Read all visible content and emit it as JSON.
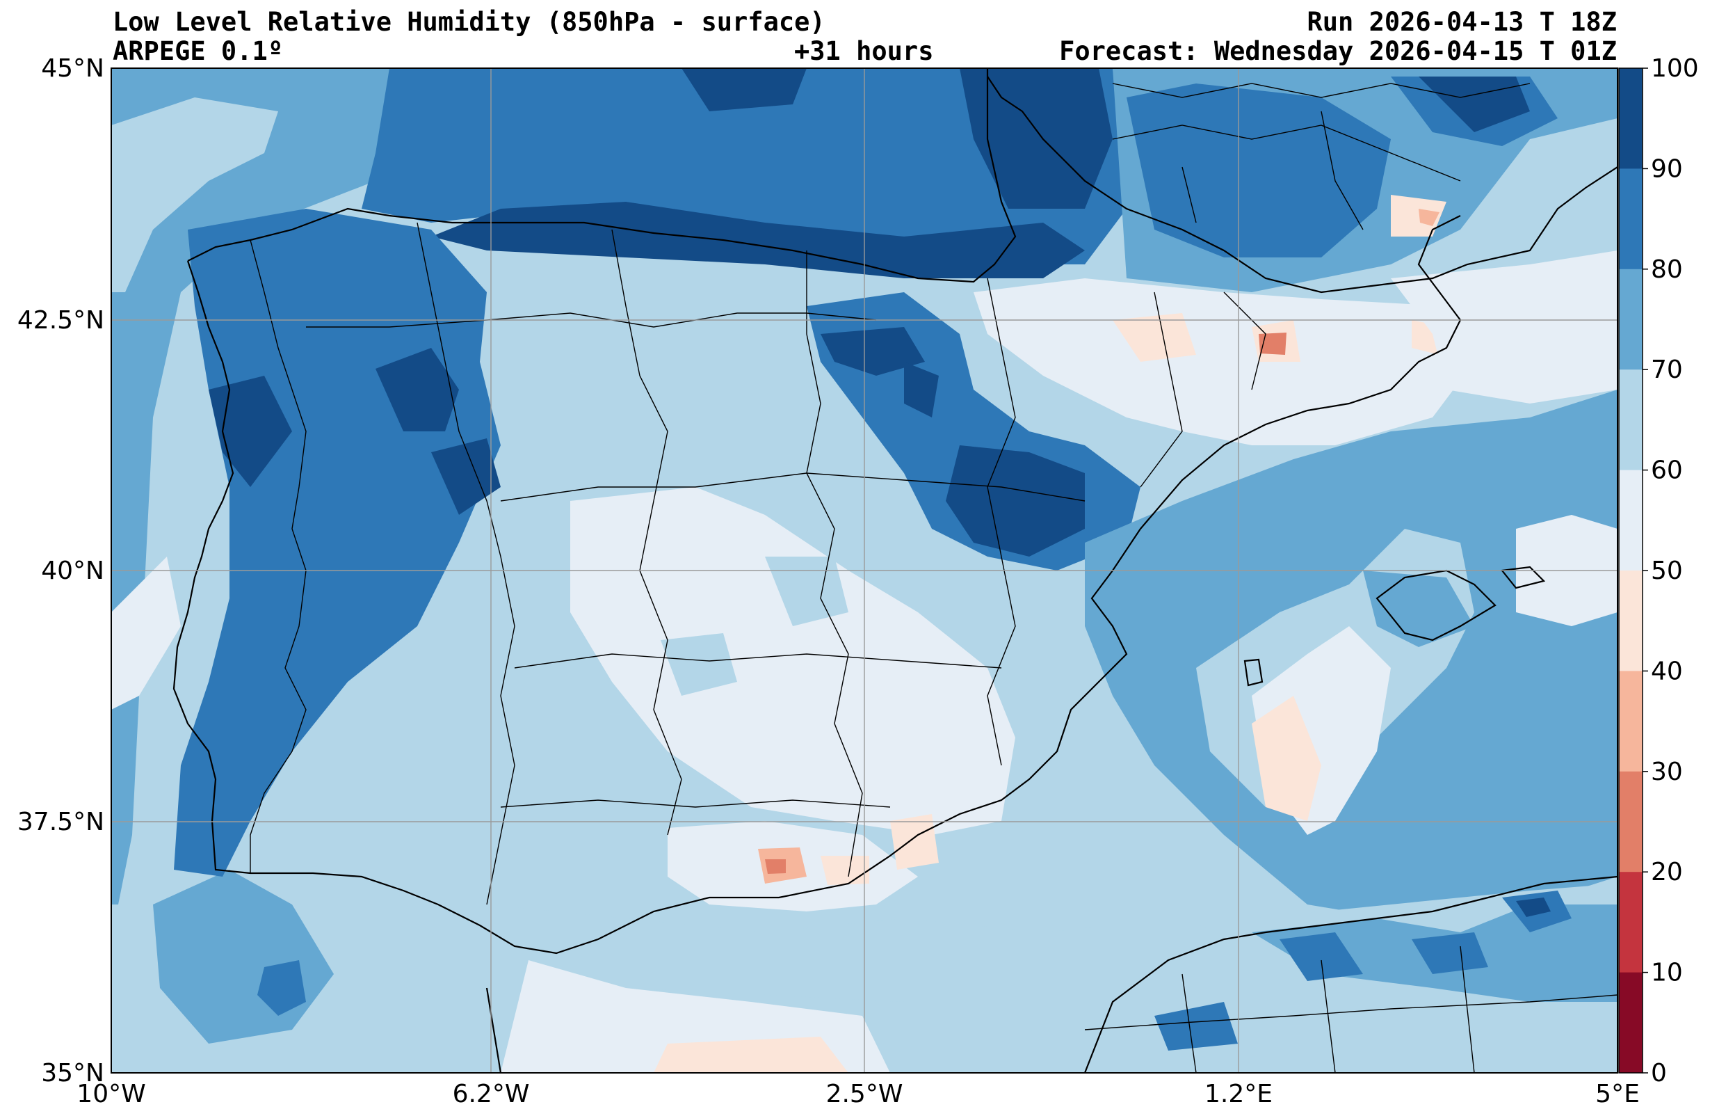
{
  "header": {
    "title_left": "Low Level Relative Humidity (850hPa - surface)",
    "subtitle_left": "ARPEGE 0.1º",
    "lead_time": "+31 hours",
    "run": "Run 2026-04-13 T 18Z",
    "forecast": "Forecast: Wednesday 2026-04-15 T 01Z"
  },
  "map": {
    "region": "Iberian Peninsula and western Mediterranean",
    "lon_range": [
      -10,
      5
    ],
    "lat_range": [
      35,
      45
    ],
    "x_ticks": [
      "10°W",
      "6.2°W",
      "2.5°W",
      "1.2°E",
      "5°E"
    ],
    "y_ticks": [
      "45°N",
      "42.5°N",
      "40°N",
      "37.5°N",
      "35°N"
    ],
    "grid": true
  },
  "colorbar": {
    "ticks": [
      "100",
      "90",
      "80",
      "70",
      "60",
      "50",
      "40",
      "30",
      "20",
      "10",
      "0"
    ],
    "levels": [
      {
        "range": [
          90,
          100
        ],
        "color": "#134b87"
      },
      {
        "range": [
          80,
          90
        ],
        "color": "#2e78b7"
      },
      {
        "range": [
          70,
          80
        ],
        "color": "#65a8d2"
      },
      {
        "range": [
          60,
          70
        ],
        "color": "#b3d6e8"
      },
      {
        "range": [
          50,
          60
        ],
        "color": "#e6eef6"
      },
      {
        "range": [
          40,
          50
        ],
        "color": "#fbe5d9"
      },
      {
        "range": [
          30,
          40
        ],
        "color": "#f6b69c"
      },
      {
        "range": [
          20,
          30
        ],
        "color": "#e27f68"
      },
      {
        "range": [
          10,
          20
        ],
        "color": "#c4343e"
      },
      {
        "range": [
          0,
          10
        ],
        "color": "#870a26"
      }
    ]
  }
}
